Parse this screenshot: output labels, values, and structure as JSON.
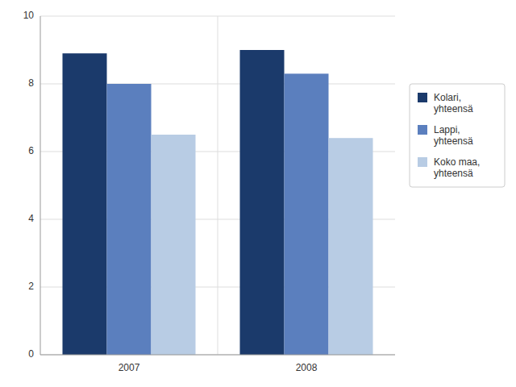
{
  "chart_data": {
    "type": "bar",
    "categories": [
      "2007",
      "2008"
    ],
    "series": [
      {
        "name": "Kolari,\nyhteensä",
        "color": "#1b3a6b",
        "values": [
          8.9,
          9.0
        ]
      },
      {
        "name": "Lappi,\nyhteensä",
        "color": "#5b7fbe",
        "values": [
          8.0,
          8.3
        ]
      },
      {
        "name": "Koko maa,\nyhteensä",
        "color": "#b8cce4",
        "values": [
          6.5,
          6.4
        ]
      }
    ],
    "ylim": [
      0,
      10
    ],
    "yticks": [
      0,
      2,
      4,
      6,
      8,
      10
    ],
    "grid": true,
    "legend": "right"
  }
}
